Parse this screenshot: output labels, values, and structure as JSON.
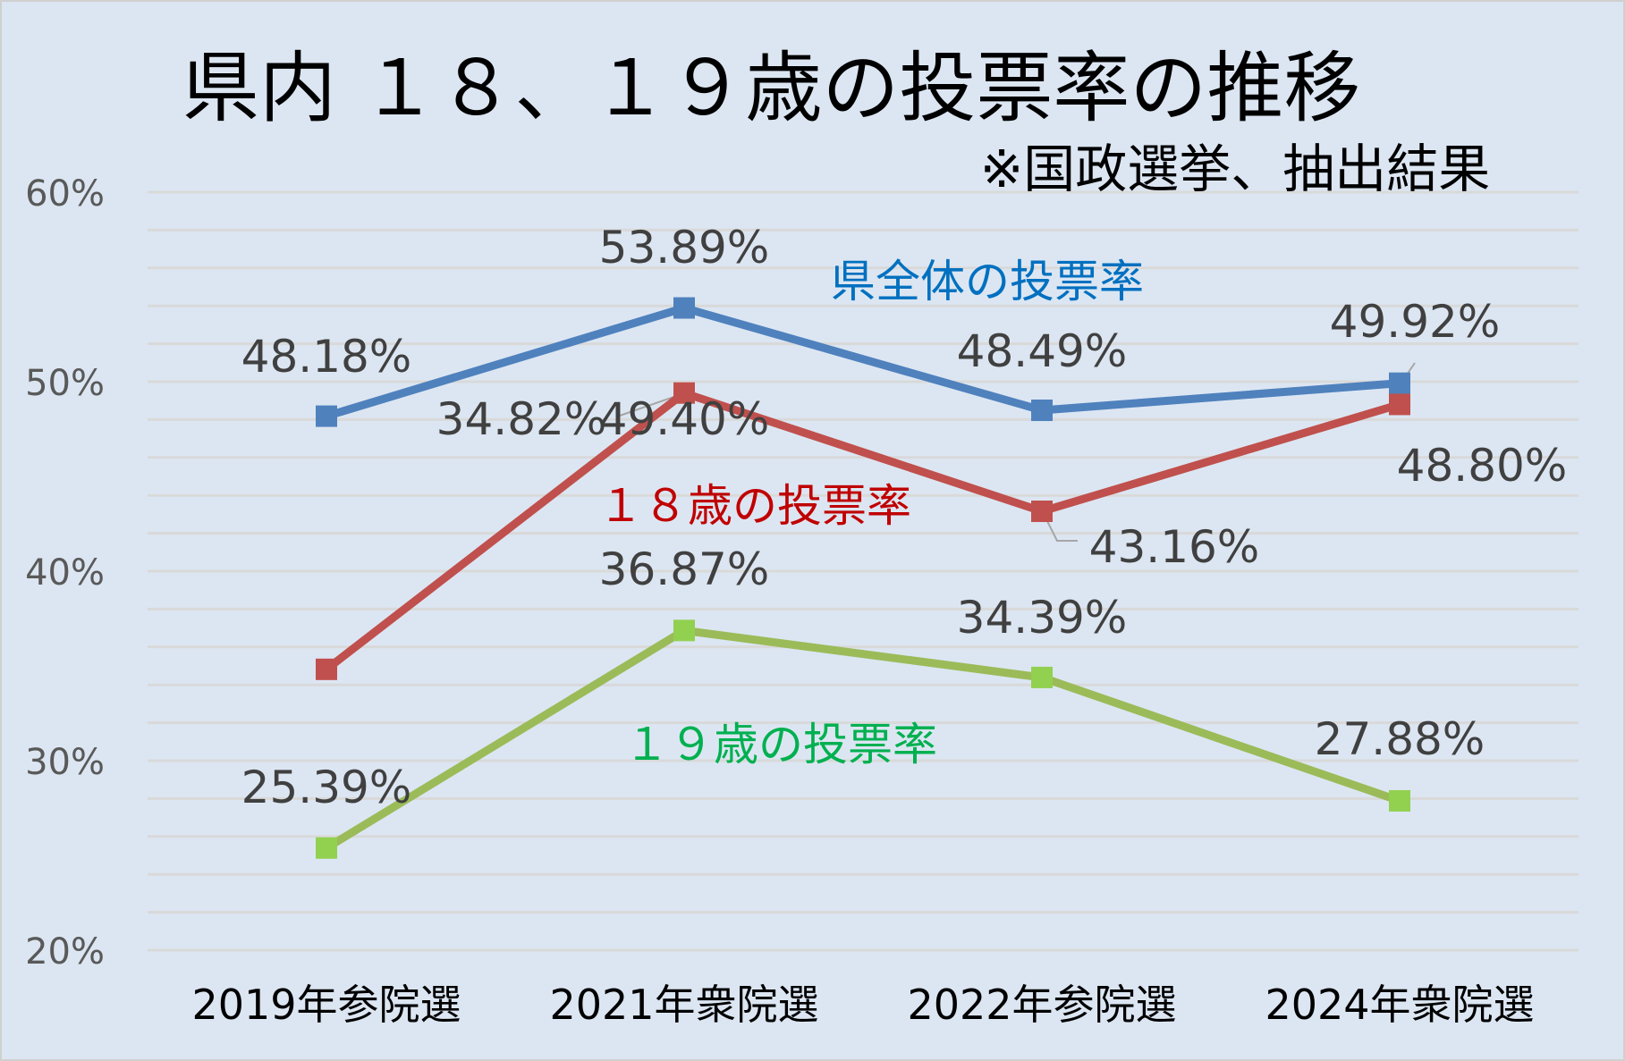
{
  "chart_data": {
    "type": "line",
    "title": "県内 １８、１９歳の投票率の推移",
    "subtitle": "※国政選挙、抽出結果",
    "categories": [
      "2019年参院選",
      "2021年衆院選",
      "2022年参院選",
      "2024年衆院選"
    ],
    "ylim": [
      20,
      60
    ],
    "yticks": [
      "20%",
      "30%",
      "40%",
      "50%",
      "60%"
    ],
    "grid": true,
    "series": [
      {
        "name": "県全体の投票率",
        "values": [
          48.18,
          53.89,
          48.49,
          49.92
        ],
        "labels": [
          "48.18%",
          "53.89%",
          "48.49%",
          "49.92%"
        ],
        "color": "#4f81bd",
        "label_color": "#0070c0"
      },
      {
        "name": "１８歳の投票率",
        "values": [
          34.82,
          49.4,
          43.16,
          48.8
        ],
        "labels": [
          "34.82%",
          "49.40%",
          "43.16%",
          "48.80%"
        ],
        "color": "#c0504d",
        "label_color": "#c00000"
      },
      {
        "name": "１９歳の投票率",
        "values": [
          25.39,
          36.87,
          34.39,
          27.88
        ],
        "labels": [
          "25.39%",
          "36.87%",
          "34.39%",
          "27.88%"
        ],
        "color": "#9bbb59",
        "marker_color": "#92d050",
        "label_color": "#00b050"
      }
    ],
    "background": "#dce6f2"
  }
}
